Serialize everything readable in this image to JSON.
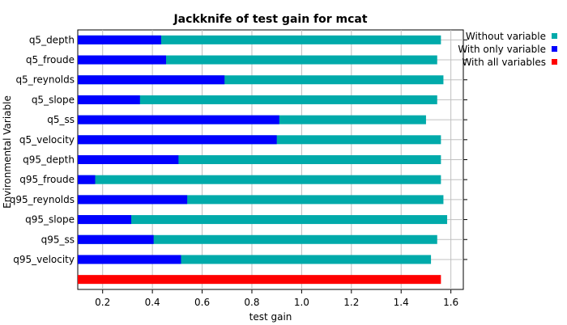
{
  "chart_data": {
    "type": "bar",
    "orientation": "horizontal",
    "title": "Jackknife of test gain for mcat",
    "xlabel": "test gain",
    "ylabel": "Environmental Variable",
    "xlim": [
      0.1,
      1.65
    ],
    "xticks": [
      0.2,
      0.4,
      0.6,
      0.8,
      1.0,
      1.2,
      1.4,
      1.6
    ],
    "xtick_labels": [
      "0.2",
      "0.4",
      "0.6",
      "0.8",
      "1.0",
      "1.2",
      "1.4",
      "1.6"
    ],
    "grid": true,
    "legend_position": "right",
    "categories": [
      "q5_depth",
      "q5_froude",
      "q5_reynolds",
      "q5_slope",
      "q5_ss",
      "q5_velocity",
      "q95_depth",
      "q95_froude",
      "q95_reynolds",
      "q95_slope",
      "q95_ss",
      "q95_velocity"
    ],
    "series": [
      {
        "name": "Without variable",
        "color": "#00aaaa",
        "values": [
          1.56,
          1.545,
          1.57,
          1.545,
          1.5,
          1.56,
          1.56,
          1.56,
          1.57,
          1.585,
          1.545,
          1.52
        ]
      },
      {
        "name": "With only variable",
        "color": "#0000ff",
        "values": [
          0.435,
          0.455,
          0.69,
          0.35,
          0.91,
          0.9,
          0.505,
          0.17,
          0.54,
          0.315,
          0.405,
          0.515
        ]
      },
      {
        "name": "With all variables",
        "color": "#ff0000",
        "value": 1.56
      }
    ]
  }
}
